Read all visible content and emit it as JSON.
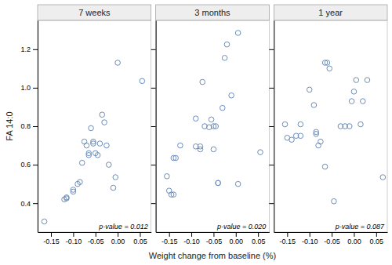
{
  "chart_data": [
    {
      "type": "scatter",
      "title": "7 weeks",
      "ylabel": "FA 14:0",
      "annotation": "p-value = 0.012",
      "color": "#6b8dba",
      "marker": "circle",
      "xlim": [
        -0.18,
        0.075
      ],
      "ylim": [
        0.25,
        1.35
      ],
      "xticks": [
        -0.15,
        {
          "value": -0.1,
          "label": "-0.10"
        },
        -0.05,
        {
          "value": 0,
          "label": "0.00"
        },
        0.05
      ],
      "yticks": [
        0.4,
        0.6,
        0.8,
        {
          "value": 1,
          "label": "1.0"
        },
        1.2
      ],
      "x": [
        -0.165,
        -0.12,
        -0.115,
        -0.115,
        -0.1,
        -0.1,
        -0.09,
        -0.085,
        -0.08,
        -0.075,
        -0.07,
        -0.065,
        -0.065,
        -0.06,
        -0.055,
        -0.055,
        -0.05,
        -0.045,
        -0.04,
        -0.035,
        -0.03,
        -0.025,
        -0.02,
        -0.01,
        -0.005,
        0.0,
        0.055
      ],
      "values": [
        0.305,
        0.42,
        0.425,
        0.43,
        0.46,
        0.47,
        0.5,
        0.51,
        0.61,
        0.72,
        0.7,
        0.65,
        0.66,
        0.79,
        0.72,
        0.71,
        0.66,
        0.65,
        0.71,
        0.86,
        0.82,
        0.7,
        0.6,
        0.48,
        0.535,
        1.13,
        1.035
      ]
    },
    {
      "type": "scatter",
      "title": "3 months",
      "xlabel": "Weight change from baseline (%)",
      "annotation": "p-value = 0.020",
      "color": "#6b8dba",
      "marker": "circle",
      "tick_labels": "x",
      "xlim": [
        -0.18,
        0.075
      ],
      "ylim": [
        0.25,
        1.35
      ],
      "xticks": [
        -0.15,
        {
          "value": -0.1,
          "label": "-0.10"
        },
        -0.05,
        {
          "value": 0,
          "label": "0.00"
        },
        0.05
      ],
      "yticks": [
        0.4,
        0.6,
        0.8,
        1,
        1.2
      ],
      "x": [
        -0.155,
        -0.15,
        -0.145,
        -0.14,
        -0.14,
        -0.135,
        -0.125,
        -0.09,
        -0.09,
        -0.08,
        -0.08,
        -0.075,
        -0.07,
        -0.06,
        -0.055,
        -0.05,
        -0.05,
        -0.045,
        -0.04,
        -0.04,
        -0.03,
        -0.025,
        -0.02,
        -0.01,
        0.005,
        0.005,
        0.055
      ],
      "values": [
        0.54,
        0.465,
        0.445,
        0.445,
        0.635,
        0.635,
        0.7,
        0.84,
        0.695,
        0.695,
        0.68,
        1.03,
        0.8,
        0.795,
        0.835,
        0.8,
        0.68,
        0.8,
        0.505,
        0.505,
        0.895,
        1.155,
        1.225,
        0.96,
        1.285,
        0.5,
        0.665
      ]
    },
    {
      "type": "scatter",
      "title": "1 year",
      "annotation": "p-value = 0.087",
      "color": "#6b8dba",
      "marker": "circle",
      "tick_labels": "x",
      "xlim": [
        -0.18,
        0.075
      ],
      "ylim": [
        0.25,
        1.35
      ],
      "xticks": [
        -0.15,
        {
          "value": -0.1,
          "label": "-0.10"
        },
        -0.05,
        {
          "value": 0,
          "label": "0.00"
        },
        0.05
      ],
      "yticks": [
        0.4,
        0.6,
        0.8,
        1,
        1.2
      ],
      "x": [
        -0.155,
        -0.15,
        -0.14,
        -0.13,
        -0.12,
        -0.12,
        -0.1,
        -0.09,
        -0.085,
        -0.085,
        -0.08,
        -0.075,
        -0.065,
        -0.065,
        -0.06,
        -0.055,
        -0.045,
        -0.03,
        -0.02,
        -0.01,
        -0.005,
        0.0,
        0.005,
        0.015,
        0.02,
        0.03,
        0.065
      ],
      "values": [
        0.81,
        0.74,
        0.73,
        0.75,
        0.75,
        0.81,
        0.99,
        0.91,
        0.76,
        0.77,
        0.7,
        0.72,
        0.59,
        1.13,
        1.13,
        1.1,
        0.41,
        0.8,
        0.8,
        0.8,
        0.93,
        0.98,
        1.04,
        0.81,
        0.93,
        1.04,
        0.535
      ]
    }
  ]
}
